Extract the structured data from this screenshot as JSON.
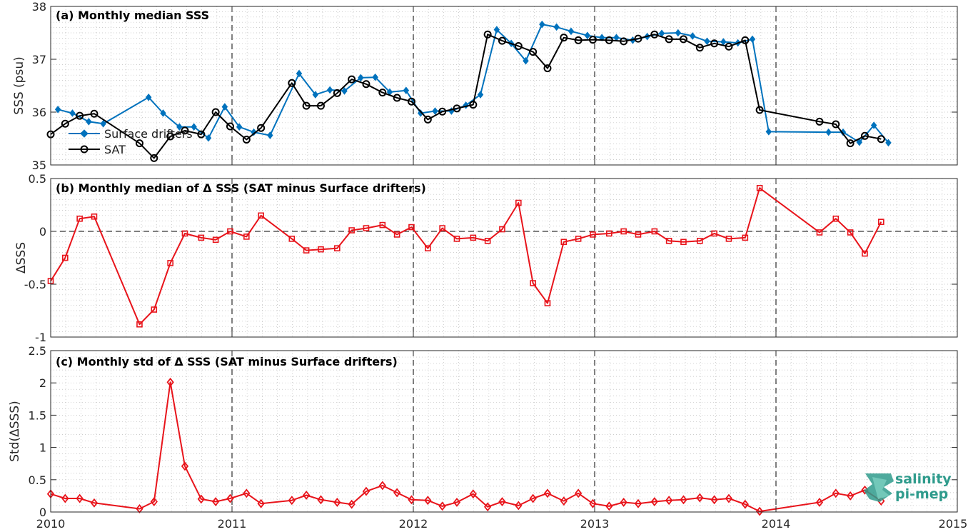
{
  "x_axis": {
    "lim": [
      2010,
      2015
    ],
    "ticks": [
      "2010",
      "2011",
      "2012",
      "2013",
      "2014",
      "2015"
    ]
  },
  "logo": {
    "line1": "salinity",
    "line2": "pi-mep",
    "accent": "#2f9b8c"
  },
  "colors": {
    "drifters": "#0072BD",
    "sat": "#000000",
    "delta": "#e8141b",
    "grid": "#bdbdbd"
  },
  "chart_data": [
    {
      "type": "line",
      "title": "(a) Monthly median SSS",
      "ylabel": "SSS (psu)",
      "ylim": [
        35,
        38
      ],
      "yticks": [
        "35",
        "36",
        "37",
        "38"
      ],
      "grid": true,
      "legend_placement": "left",
      "series": [
        {
          "name": "Surface drifters",
          "marker": "diamond",
          "color": "#0072BD",
          "x": [
            2010.04,
            2010.12,
            2010.21,
            2010.29,
            2010.54,
            2010.62,
            2010.71,
            2010.79,
            2010.87,
            2010.96,
            2011.04,
            2011.12,
            2011.21,
            2011.37,
            2011.46,
            2011.54,
            2011.62,
            2011.71,
            2011.79,
            2011.87,
            2011.96,
            2012.04,
            2012.12,
            2012.21,
            2012.29,
            2012.37,
            2012.46,
            2012.54,
            2012.62,
            2012.71,
            2012.79,
            2012.87,
            2012.96,
            2013.04,
            2013.12,
            2013.21,
            2013.29,
            2013.37,
            2013.46,
            2013.54,
            2013.62,
            2013.71,
            2013.79,
            2013.87,
            2013.96,
            2014.29,
            2014.37,
            2014.46,
            2014.54,
            2014.62
          ],
          "y": [
            36.05,
            35.98,
            35.82,
            35.78,
            36.28,
            35.98,
            35.72,
            35.72,
            35.51,
            36.1,
            35.72,
            35.62,
            35.56,
            36.73,
            36.33,
            36.42,
            36.4,
            36.65,
            36.66,
            36.38,
            36.41,
            35.98,
            36.02,
            36.02,
            36.13,
            36.33,
            37.56,
            37.3,
            36.97,
            37.66,
            37.61,
            37.53,
            37.45,
            37.41,
            37.41,
            37.36,
            37.43,
            37.49,
            37.5,
            37.44,
            37.34,
            37.33,
            37.31,
            37.38,
            35.63,
            35.62,
            35.62,
            35.43,
            35.75,
            35.42
          ]
        },
        {
          "name": "SAT",
          "marker": "circle",
          "color": "#000000",
          "x": [
            2010.0,
            2010.08,
            2010.16,
            2010.24,
            2010.49,
            2010.57,
            2010.66,
            2010.74,
            2010.83,
            2010.91,
            2010.99,
            2011.08,
            2011.16,
            2011.33,
            2011.41,
            2011.49,
            2011.58,
            2011.66,
            2011.74,
            2011.83,
            2011.91,
            2011.99,
            2012.08,
            2012.16,
            2012.24,
            2012.33,
            2012.41,
            2012.49,
            2012.58,
            2012.66,
            2012.74,
            2012.83,
            2012.91,
            2012.99,
            2013.08,
            2013.16,
            2013.24,
            2013.33,
            2013.41,
            2013.49,
            2013.58,
            2013.66,
            2013.74,
            2013.83,
            2013.91,
            2014.24,
            2014.33,
            2014.41,
            2014.49,
            2014.58
          ],
          "y": [
            35.58,
            35.78,
            35.93,
            35.97,
            35.41,
            35.13,
            35.54,
            35.65,
            35.58,
            36.0,
            35.73,
            35.48,
            35.7,
            36.55,
            36.12,
            36.12,
            36.36,
            36.62,
            36.53,
            36.37,
            36.27,
            36.2,
            35.86,
            36.01,
            36.07,
            36.14,
            37.47,
            37.35,
            37.25,
            37.14,
            36.83,
            37.41,
            37.36,
            37.37,
            37.36,
            37.34,
            37.39,
            37.47,
            37.38,
            37.38,
            37.22,
            37.3,
            37.24,
            37.36,
            36.04,
            35.82,
            35.77,
            35.41,
            35.55,
            35.49
          ]
        }
      ]
    },
    {
      "type": "line",
      "title": "(b) Monthly median of Δ SSS (SAT minus Surface drifters)",
      "ylabel": "ΔSSS",
      "ylim": [
        -1,
        0.5
      ],
      "yticks": [
        "-1",
        "-0.5",
        "0",
        "0.5"
      ],
      "reference_line": 0,
      "grid": true,
      "series": [
        {
          "marker": "square",
          "color": "#e8141b",
          "x": [
            2010.0,
            2010.08,
            2010.16,
            2010.24,
            2010.49,
            2010.57,
            2010.66,
            2010.74,
            2010.83,
            2010.91,
            2010.99,
            2011.08,
            2011.16,
            2011.33,
            2011.41,
            2011.49,
            2011.58,
            2011.66,
            2011.74,
            2011.83,
            2011.91,
            2011.99,
            2012.08,
            2012.16,
            2012.24,
            2012.33,
            2012.41,
            2012.49,
            2012.58,
            2012.66,
            2012.74,
            2012.83,
            2012.91,
            2012.99,
            2013.08,
            2013.16,
            2013.24,
            2013.33,
            2013.41,
            2013.49,
            2013.58,
            2013.66,
            2013.74,
            2013.83,
            2013.91,
            2014.24,
            2014.33,
            2014.41,
            2014.49,
            2014.58
          ],
          "y": [
            -0.47,
            -0.25,
            0.12,
            0.14,
            -0.88,
            -0.74,
            -0.3,
            -0.02,
            -0.06,
            -0.08,
            0.0,
            -0.05,
            0.15,
            -0.07,
            -0.18,
            -0.17,
            -0.16,
            0.01,
            0.03,
            0.06,
            -0.03,
            0.04,
            -0.16,
            0.03,
            -0.07,
            -0.06,
            -0.09,
            0.02,
            0.27,
            -0.49,
            -0.68,
            -0.1,
            -0.07,
            -0.03,
            -0.02,
            0.0,
            -0.03,
            0.0,
            -0.09,
            -0.1,
            -0.09,
            -0.02,
            -0.07,
            -0.06,
            0.41,
            -0.01,
            0.12,
            -0.01,
            -0.21,
            0.09
          ]
        }
      ]
    },
    {
      "type": "line",
      "title": "(c) Monthly std of Δ SSS (SAT minus Surface drifters)",
      "ylabel": "Std(ΔSSS)",
      "ylim": [
        0,
        2.5
      ],
      "yticks": [
        "0",
        "0.5",
        "1",
        "1.5",
        "2",
        "2.5"
      ],
      "grid": true,
      "series": [
        {
          "marker": "diamond",
          "color": "#e8141b",
          "x": [
            2010.0,
            2010.08,
            2010.16,
            2010.24,
            2010.49,
            2010.57,
            2010.66,
            2010.74,
            2010.83,
            2010.91,
            2010.99,
            2011.08,
            2011.16,
            2011.33,
            2011.41,
            2011.49,
            2011.58,
            2011.66,
            2011.74,
            2011.83,
            2011.91,
            2011.99,
            2012.08,
            2012.16,
            2012.24,
            2012.33,
            2012.41,
            2012.49,
            2012.58,
            2012.66,
            2012.74,
            2012.83,
            2012.91,
            2012.99,
            2013.08,
            2013.16,
            2013.24,
            2013.33,
            2013.41,
            2013.49,
            2013.58,
            2013.66,
            2013.74,
            2013.83,
            2013.91,
            2014.24,
            2014.33,
            2014.41,
            2014.49,
            2014.58
          ],
          "y": [
            0.28,
            0.21,
            0.21,
            0.14,
            0.05,
            0.16,
            2.01,
            0.71,
            0.2,
            0.16,
            0.21,
            0.29,
            0.13,
            0.18,
            0.26,
            0.19,
            0.15,
            0.12,
            0.32,
            0.41,
            0.3,
            0.19,
            0.18,
            0.09,
            0.15,
            0.28,
            0.08,
            0.16,
            0.1,
            0.21,
            0.29,
            0.17,
            0.29,
            0.13,
            0.09,
            0.15,
            0.13,
            0.16,
            0.18,
            0.19,
            0.22,
            0.19,
            0.21,
            0.12,
            0.01,
            0.15,
            0.29,
            0.25,
            0.34,
            0.17
          ]
        }
      ]
    }
  ]
}
